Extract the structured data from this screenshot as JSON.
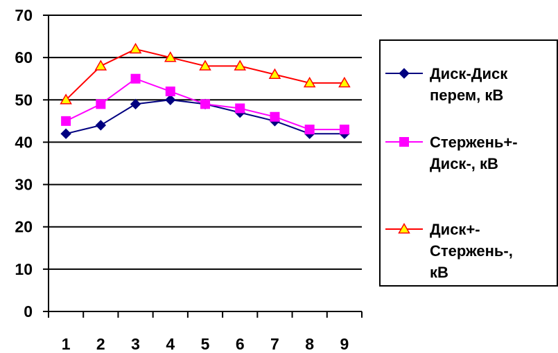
{
  "chart_data": {
    "type": "line",
    "title": "",
    "xlabel": "",
    "ylabel": "",
    "categories": [
      "1",
      "2",
      "3",
      "4",
      "5",
      "6",
      "7",
      "8",
      "9"
    ],
    "ylim": [
      0,
      70
    ],
    "yticks": [
      0,
      10,
      20,
      30,
      40,
      50,
      60,
      70
    ],
    "grid": true,
    "legend": "right",
    "series": [
      {
        "name": "Диск-Диск перем, кВ",
        "legend_lines": [
          "Диск-Диск",
          "перем, кВ"
        ],
        "color": "#000080",
        "marker": "diamond",
        "values": [
          42,
          44,
          49,
          50,
          49,
          47,
          45,
          42,
          42
        ]
      },
      {
        "name": "Стержень+-Диск-, кВ",
        "legend_lines": [
          "Стержень+-",
          "Диск-, кВ"
        ],
        "color": "#FF00FF",
        "marker": "square",
        "values": [
          45,
          49,
          55,
          52,
          49,
          48,
          46,
          43,
          43
        ]
      },
      {
        "name": "Диск+-Стержень-, кВ",
        "legend_lines": [
          "Диск+-",
          "Стержень-,",
          "кВ"
        ],
        "color": "#FF0000",
        "marker_fill": "#FFFF00",
        "marker": "triangle",
        "values": [
          50,
          58,
          62,
          60,
          58,
          58,
          56,
          54,
          54
        ]
      }
    ]
  }
}
